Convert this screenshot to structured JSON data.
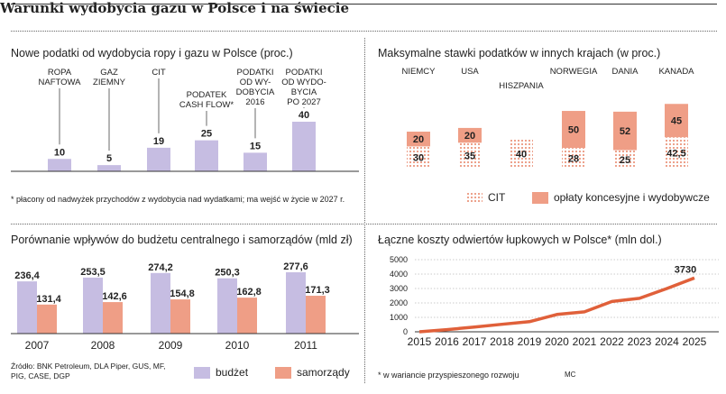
{
  "title": "Warunki wydobycia gazu w Polsce i na świecie",
  "colors": {
    "lavender": "#c6bde2",
    "salmon": "#ef9e86",
    "line": "#e0603a",
    "cit_dots": "#e0603a"
  },
  "source_note": "Źródło: BNK Petroleum, DLA Piper, GUS, MF, PIG, CASE, DGP",
  "credit": "MC",
  "chart_data": [
    {
      "id": "taxes",
      "type": "bar",
      "title": "Nowe podatki od wydobycia ropy i gazu w Polsce (proc.)",
      "categories": [
        "ROPA NAFTOWA",
        "GAZ ZIEMNY",
        "CIT",
        "PODATEK CASH FLOW*",
        "PODATKI OD WYDOBYCIA 2016",
        "PODATKI OD WYDOBYCIA PO 2027"
      ],
      "label_lines": [
        [
          "ROPA",
          "NAFTOWA"
        ],
        [
          "GAZ",
          "ZIEMNY"
        ],
        [
          "CIT"
        ],
        [
          "PODATEK",
          "CASH FLOW*"
        ],
        [
          "PODATKI",
          "OD WY-",
          "DOBYCIA",
          "2016"
        ],
        [
          "PODATKI",
          "OD WYDO-",
          "BYCIA",
          "PO 2027"
        ]
      ],
      "values": [
        10,
        5,
        19,
        25,
        15,
        40
      ],
      "footnote": "* płacony od nadwyżek przychodów z wydobycia nad wydatkami; ma wejść w życie w 2027 r."
    },
    {
      "id": "foreign",
      "type": "bar",
      "stacked": true,
      "title": "Maksymalne stawki podatków w innych krajach (w proc.)",
      "categories": [
        "NIEMCY",
        "USA",
        "HISZPANIA",
        "NORWEGIA",
        "DANIA",
        "KANADA"
      ],
      "series": [
        {
          "name": "CIT",
          "values": [
            30,
            35,
            40,
            28,
            25,
            42.5
          ],
          "labels": [
            "30",
            "35",
            "40",
            "28",
            "25",
            "42,5"
          ]
        },
        {
          "name": "opłaty koncesyjne i wydobywcze",
          "values": [
            20,
            20,
            0,
            50,
            52,
            45
          ],
          "labels": [
            "20",
            "20",
            "",
            "50",
            "52",
            "45"
          ]
        }
      ]
    },
    {
      "id": "budget",
      "type": "bar",
      "title": "Porównanie wpływów do budżetu centralnego i samorządów (mld zł)",
      "categories": [
        "2007",
        "2008",
        "2009",
        "2010",
        "2011"
      ],
      "series": [
        {
          "name": "budżet",
          "values": [
            236.4,
            253.5,
            274.2,
            250.3,
            277.6
          ],
          "labels": [
            "236,4",
            "253,5",
            "274,2",
            "250,3",
            "277,6"
          ]
        },
        {
          "name": "samorządy",
          "values": [
            131.4,
            142.6,
            154.8,
            162.8,
            171.3
          ],
          "labels": [
            "131,4",
            "142,6",
            "154,8",
            "162,8",
            "171,3"
          ]
        }
      ]
    },
    {
      "id": "costs",
      "type": "line",
      "title": "Łączne koszty odwiertów łupkowych w Polsce* (mln dol.)",
      "x": [
        2015,
        2016,
        2017,
        2018,
        2019,
        2020,
        2021,
        2022,
        2023,
        2024,
        2025
      ],
      "x_labels": [
        "2015",
        "2016",
        "2017",
        "2018",
        "2019",
        "2020",
        "2021",
        "2022",
        "2023",
        "2024",
        "2025"
      ],
      "values": [
        0,
        150,
        330,
        520,
        700,
        1200,
        1380,
        2100,
        2320,
        3000,
        3730
      ],
      "ylim": [
        0,
        5000
      ],
      "y_ticks": [
        "0",
        "1000",
        "2000",
        "3000",
        "4000",
        "5000"
      ],
      "end_label": "3730",
      "footnote": "* w wariancie przyspieszonego rozwoju"
    }
  ]
}
